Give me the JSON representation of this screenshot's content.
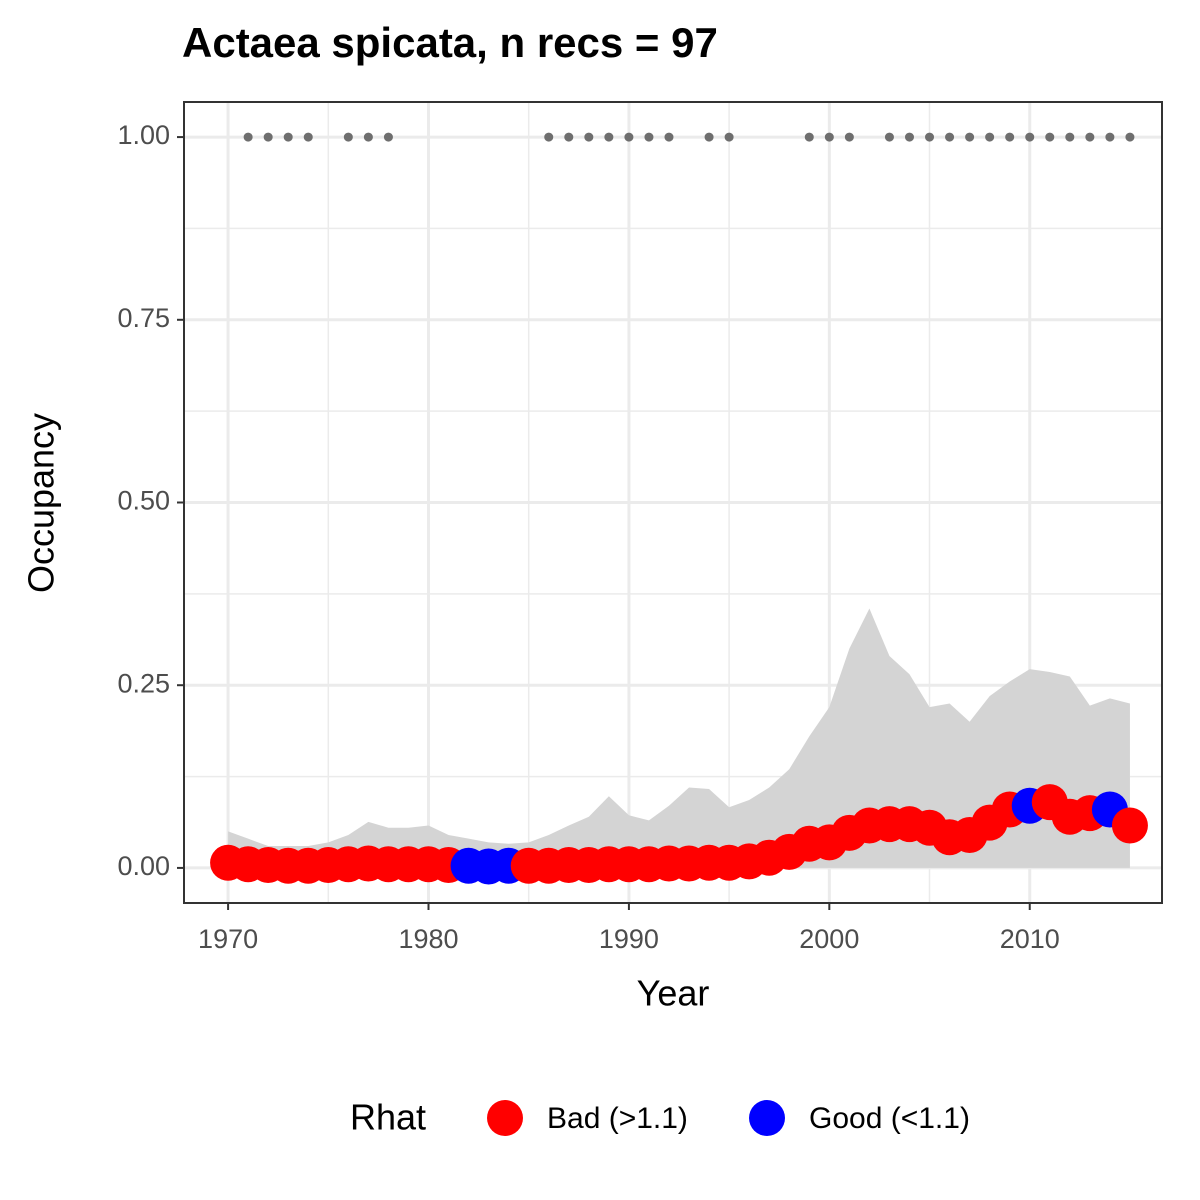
{
  "chart_data": {
    "type": "scatter",
    "title": "Actaea spicata, n recs = 97",
    "x_label": "Year",
    "y_label": "Occupancy",
    "x": [
      1970,
      1971,
      1972,
      1973,
      1974,
      1975,
      1976,
      1977,
      1978,
      1979,
      1980,
      1981,
      1982,
      1983,
      1984,
      1985,
      1986,
      1987,
      1988,
      1989,
      1990,
      1991,
      1992,
      1993,
      1994,
      1995,
      1996,
      1997,
      1998,
      1999,
      2000,
      2001,
      2002,
      2003,
      2004,
      2005,
      2006,
      2007,
      2008,
      2009,
      2010,
      2011,
      2012,
      2013,
      2014,
      2015
    ],
    "band": {
      "color": "#d4d4d4",
      "lower": [
        0,
        0,
        0,
        0,
        0,
        0,
        0,
        0,
        0,
        0,
        0,
        0,
        0,
        0,
        0,
        0,
        0,
        0,
        0,
        0,
        0,
        0,
        0,
        0,
        0,
        0,
        0,
        0,
        0,
        0,
        0,
        0,
        0,
        0,
        0,
        0,
        0,
        0,
        0,
        0,
        0,
        0,
        0,
        0,
        0,
        0
      ],
      "upper": [
        0.05,
        0.04,
        0.03,
        0.03,
        0.03,
        0.035,
        0.045,
        0.063,
        0.055,
        0.055,
        0.058,
        0.045,
        0.04,
        0.035,
        0.033,
        0.035,
        0.045,
        0.058,
        0.07,
        0.098,
        0.072,
        0.065,
        0.085,
        0.11,
        0.108,
        0.083,
        0.093,
        0.11,
        0.135,
        0.18,
        0.22,
        0.3,
        0.355,
        0.29,
        0.265,
        0.22,
        0.225,
        0.2,
        0.235,
        0.255,
        0.272,
        0.268,
        0.262,
        0.222,
        0.232,
        0.225
      ]
    },
    "series": [
      {
        "name": "Bad (>1.1)",
        "color": "#ff0000",
        "values": [
          0.007,
          0.005,
          0.004,
          0.003,
          0.003,
          0.004,
          0.005,
          0.006,
          0.005,
          0.005,
          0.005,
          0.004,
          null,
          null,
          null,
          0.003,
          0.003,
          0.004,
          0.004,
          0.005,
          0.005,
          0.005,
          0.006,
          0.006,
          0.007,
          0.007,
          0.009,
          0.014,
          0.022,
          0.033,
          0.035,
          0.048,
          0.058,
          0.06,
          0.06,
          0.055,
          0.042,
          0.045,
          0.062,
          0.08,
          null,
          0.09,
          0.07,
          0.075,
          null,
          0.058
        ]
      },
      {
        "name": "Good (<1.1)",
        "color": "#0000ff",
        "values": [
          null,
          null,
          null,
          null,
          null,
          null,
          null,
          null,
          null,
          null,
          null,
          null,
          0.003,
          0.002,
          0.003,
          null,
          null,
          null,
          null,
          null,
          null,
          null,
          null,
          null,
          null,
          null,
          null,
          null,
          null,
          null,
          null,
          null,
          null,
          null,
          null,
          null,
          null,
          null,
          null,
          null,
          0.085,
          null,
          null,
          null,
          0.08,
          null
        ]
      }
    ],
    "records": {
      "color": "#6e6e6e",
      "x": [
        1971,
        1972,
        1973,
        1974,
        1976,
        1977,
        1978,
        1986,
        1987,
        1988,
        1989,
        1990,
        1991,
        1992,
        1994,
        1995,
        1999,
        2000,
        2001,
        2003,
        2004,
        2005,
        2006,
        2007,
        2008,
        2009,
        2010,
        2011,
        2012,
        2013,
        2014,
        2015
      ],
      "values": [
        1,
        1,
        1,
        1,
        1,
        1,
        1,
        1,
        1,
        1,
        1,
        1,
        1,
        1,
        1,
        1,
        1,
        1,
        1,
        1,
        1,
        1,
        1,
        1,
        1,
        1,
        1,
        1,
        1,
        1,
        1,
        1
      ]
    },
    "legend_title": "Rhat",
    "xlim": [
      1967.8,
      2016.6
    ],
    "ylim": [
      -0.048,
      1.048
    ],
    "xticks": [
      1970,
      1980,
      1990,
      2000,
      2010
    ],
    "yticks": [
      {
        "value": 0,
        "label": "0.00"
      },
      {
        "value": 0.25,
        "label": "0.25"
      },
      {
        "value": 0.5,
        "label": "0.50"
      },
      {
        "value": 0.75,
        "label": "0.75"
      },
      {
        "value": 1,
        "label": "1.00"
      }
    ],
    "grid": true
  }
}
